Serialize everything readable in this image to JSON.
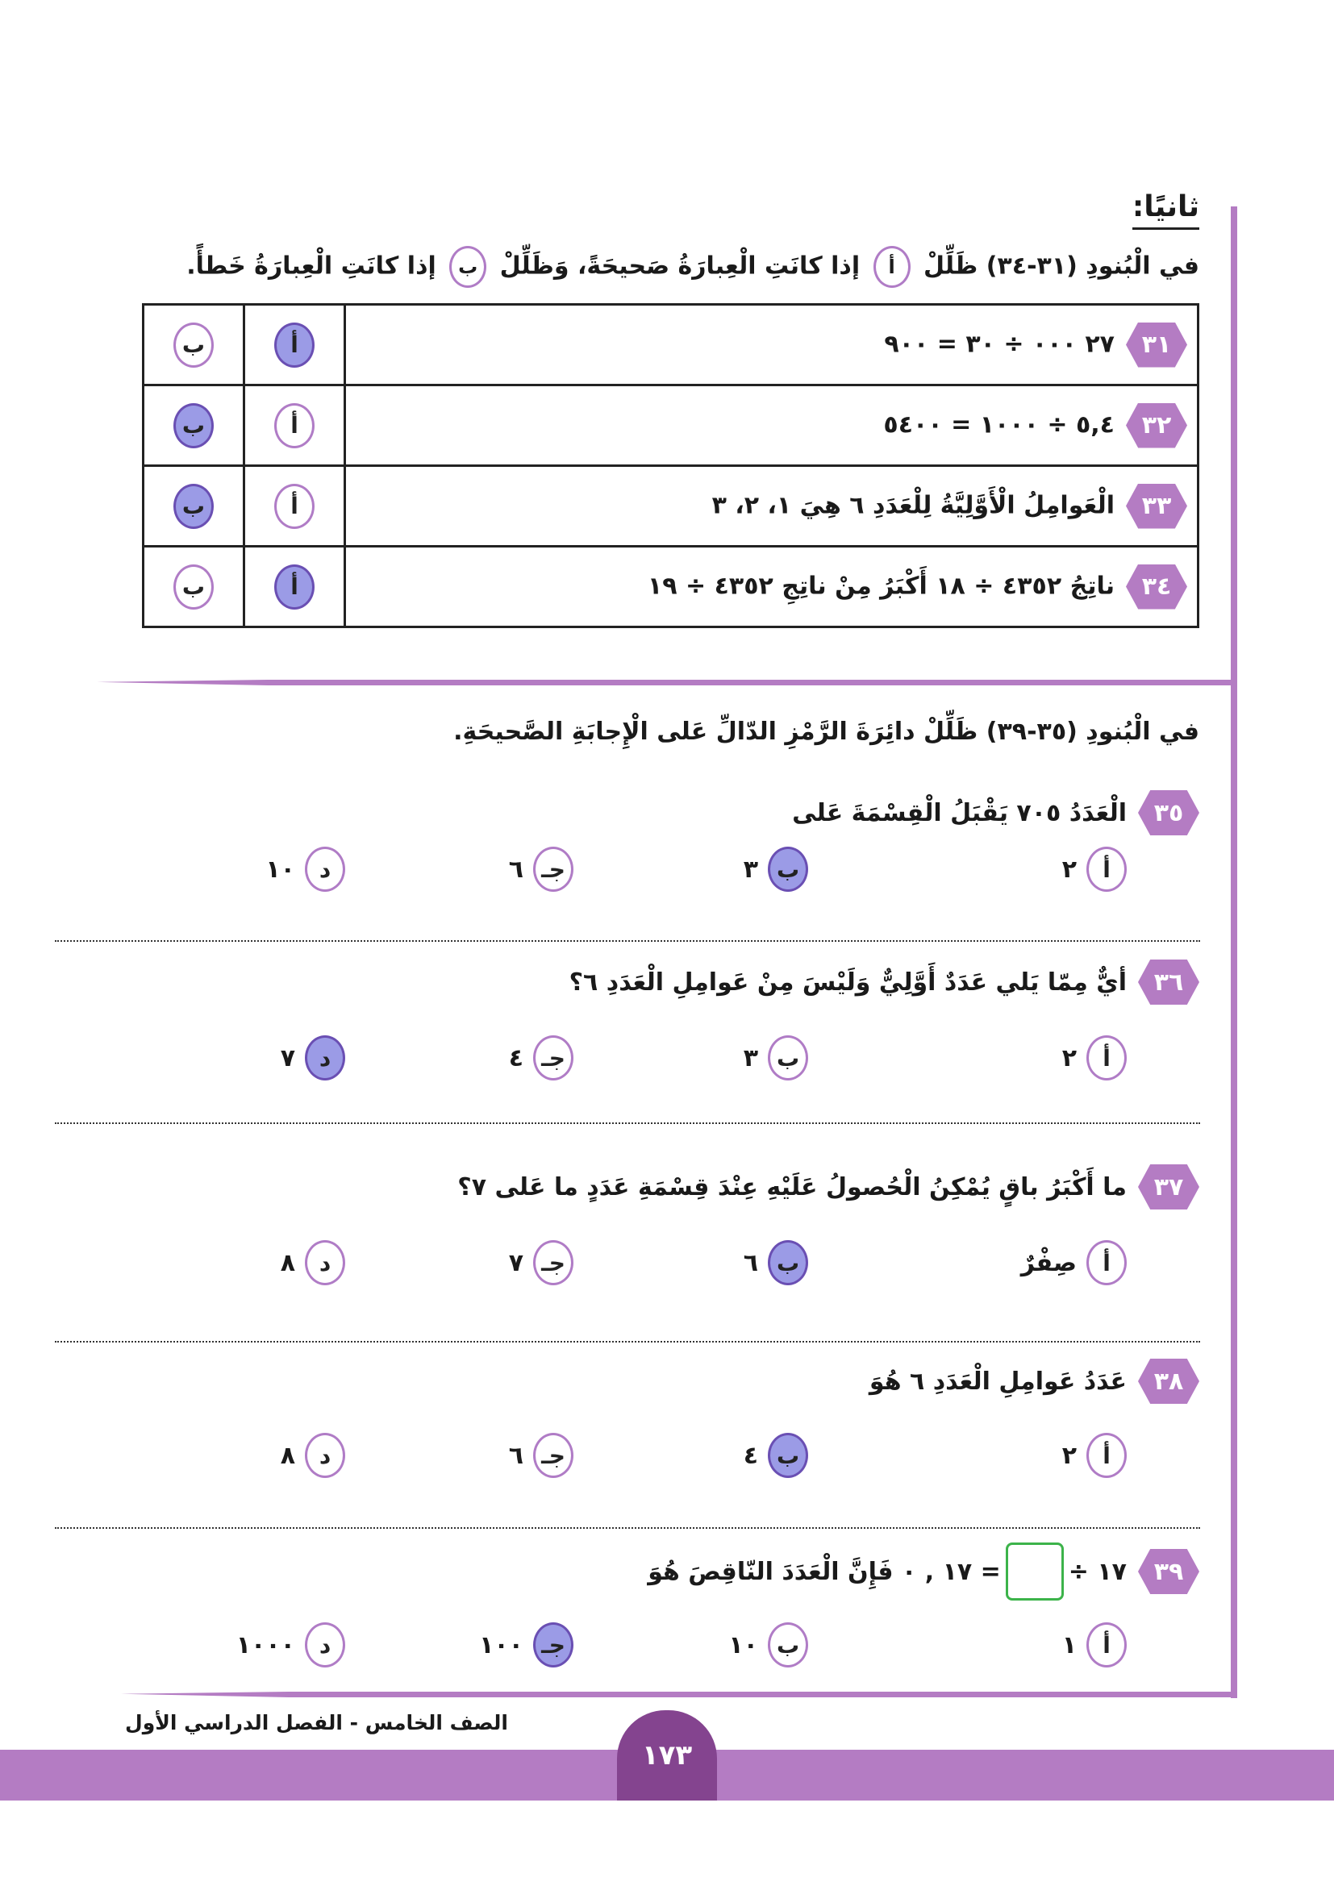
{
  "section_title": "ثانيًا:",
  "part1": {
    "instruction_pre": "في الْبُنودِ (٣١-٣٤) ظَلِّلْ",
    "instruction_mid": "إذا كانَتِ الْعِبارَةُ صَحيحَةً، وَظَلِّلْ",
    "instruction_post": "إذا كانَتِ الْعِبارَةُ خَطأً.",
    "true_symbol": "أ",
    "false_symbol": "ب",
    "rows": [
      {
        "num": "٣١",
        "text": "٢٧ ٠٠٠ ÷ ٣٠ = ٩٠٠",
        "selected": "أ"
      },
      {
        "num": "٣٢",
        "text": "٥,٤ ÷ ١٠٠٠ = ٥٤٠٠",
        "selected": "ب"
      },
      {
        "num": "٣٣",
        "text": "الْعَوامِلُ الْأَوَّلِيَّةُ لِلْعَدَدِ ٦ هِيَ ١، ٢، ٣",
        "selected": "ب"
      },
      {
        "num": "٣٤",
        "text": "ناتِجُ ٤٣٥٢ ÷ ١٨ أَكْبَرُ مِنْ ناتِجِ ٤٣٥٢ ÷ ١٩",
        "selected": "أ"
      }
    ]
  },
  "part2": {
    "instruction": "في الْبُنودِ (٣٥-٣٩) ظَلِّلْ دائِرَةَ الرَّمْزِ الدّالِّ عَلى الْإِجابَةِ الصَّحيحَةِ.",
    "questions": [
      {
        "num": "٣٥",
        "text": "الْعَدَدُ ٧٠٥ يَقْبَلُ الْقِسْمَةَ عَلى",
        "options": [
          {
            "sym": "أ",
            "val": "٢"
          },
          {
            "sym": "ب",
            "val": "٣"
          },
          {
            "sym": "جـ",
            "val": "٦"
          },
          {
            "sym": "د",
            "val": "١٠"
          }
        ],
        "selected": "ب"
      },
      {
        "num": "٣٦",
        "text": "أيٌّ مِمّا يَلي عَدَدٌ أَوَّلِيٌّ وَلَيْسَ مِنْ عَوامِلِ الْعَدَدِ ٦؟",
        "options": [
          {
            "sym": "أ",
            "val": "٢"
          },
          {
            "sym": "ب",
            "val": "٣"
          },
          {
            "sym": "جـ",
            "val": "٤"
          },
          {
            "sym": "د",
            "val": "٧"
          }
        ],
        "selected": "د"
      },
      {
        "num": "٣٧",
        "text": "ما أَكْبَرُ باقٍ يُمْكِنُ الْحُصولُ عَلَيْهِ عِنْدَ قِسْمَةِ عَدَدٍ ما عَلى ٧؟",
        "options": [
          {
            "sym": "أ",
            "val": "صِفْرٌ"
          },
          {
            "sym": "ب",
            "val": "٦"
          },
          {
            "sym": "جـ",
            "val": "٧"
          },
          {
            "sym": "د",
            "val": "٨"
          }
        ],
        "selected": "ب"
      },
      {
        "num": "٣٨",
        "text": "عَدَدُ عَوامِلِ الْعَدَدِ ٦ هُوَ",
        "options": [
          {
            "sym": "أ",
            "val": "٢"
          },
          {
            "sym": "ب",
            "val": "٤"
          },
          {
            "sym": "جـ",
            "val": "٦"
          },
          {
            "sym": "د",
            "val": "٨"
          }
        ],
        "selected": "ب"
      },
      {
        "num": "٣٩",
        "text_pre": "١٧ ÷",
        "text_post": "= ١٧ , ٠ فَإِنَّ الْعَدَدَ النّاقِصَ هُوَ",
        "options": [
          {
            "sym": "أ",
            "val": "١"
          },
          {
            "sym": "ب",
            "val": "١٠"
          },
          {
            "sym": "جـ",
            "val": "١٠٠"
          },
          {
            "sym": "د",
            "val": "١٠٠٠"
          }
        ],
        "selected": "جـ"
      }
    ]
  },
  "footer": {
    "text": "الصف الخامس - الفصل الدراسي الأول",
    "page_number": "١٧٣"
  },
  "colors": {
    "accent": "#b47cc3",
    "selected_fill": "#9b9be6",
    "page_tab": "#84448f",
    "answer_box": "#3cb34a"
  }
}
